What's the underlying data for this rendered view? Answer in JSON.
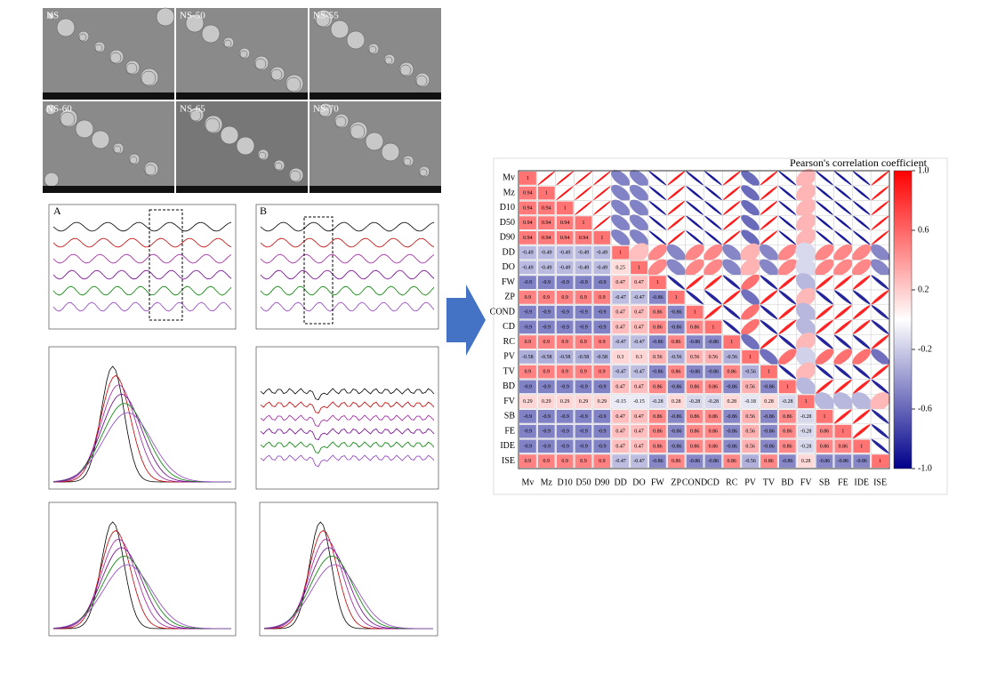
{
  "sem_labels": [
    "NS",
    "NS-50",
    "NS-55",
    "NS-60",
    "NS-65",
    "NS-70"
  ],
  "panel_labels": [
    "A",
    "B"
  ],
  "chart_data": {
    "type": "correlation-matrix",
    "title": "Pearson's correlation coefficient",
    "variables": [
      "Mv",
      "Mz",
      "D10",
      "D50",
      "D90",
      "DD",
      "DO",
      "FW",
      "ZP",
      "COND",
      "CD",
      "RC",
      "PV",
      "TV",
      "BD",
      "FV",
      "SB",
      "FE",
      "IDE",
      "ISE"
    ],
    "values": [
      [
        1,
        0.94,
        0.94,
        0.94,
        0.94,
        -0.49,
        -0.49,
        -0.9,
        0.9,
        -0.9,
        -0.9,
        0.9,
        -0.58,
        0.9,
        -0.9,
        0.29,
        -0.9,
        -0.9,
        -0.9,
        0.9
      ],
      [
        0.94,
        1,
        0.94,
        0.94,
        0.94,
        -0.49,
        -0.49,
        -0.9,
        0.9,
        -0.9,
        -0.9,
        0.9,
        -0.58,
        0.9,
        -0.9,
        0.29,
        -0.9,
        -0.9,
        -0.9,
        0.9
      ],
      [
        0.94,
        0.94,
        1,
        0.94,
        0.94,
        -0.49,
        -0.49,
        -0.9,
        0.9,
        -0.9,
        -0.9,
        0.9,
        -0.58,
        0.9,
        -0.9,
        0.29,
        -0.9,
        -0.9,
        -0.9,
        0.9
      ],
      [
        0.94,
        0.94,
        0.94,
        1,
        0.94,
        -0.49,
        -0.49,
        -0.9,
        0.9,
        -0.9,
        -0.9,
        0.9,
        -0.58,
        0.9,
        -0.9,
        0.29,
        -0.9,
        -0.9,
        -0.9,
        0.9
      ],
      [
        0.94,
        0.94,
        0.94,
        0.94,
        1,
        -0.49,
        -0.49,
        -0.9,
        0.9,
        -0.9,
        -0.9,
        0.9,
        -0.58,
        0.9,
        -0.9,
        0.29,
        -0.9,
        -0.9,
        -0.9,
        0.9
      ],
      [
        -0.49,
        -0.49,
        -0.49,
        -0.49,
        -0.49,
        1,
        0.25,
        0.47,
        -0.47,
        0.47,
        0.47,
        -0.47,
        0.3,
        -0.47,
        0.47,
        -0.15,
        0.47,
        0.47,
        0.47,
        -0.47
      ],
      [
        -0.49,
        -0.49,
        -0.49,
        -0.49,
        -0.49,
        0.25,
        1,
        0.47,
        -0.47,
        0.47,
        0.47,
        -0.47,
        0.3,
        -0.47,
        0.47,
        -0.15,
        0.47,
        0.47,
        0.47,
        -0.47
      ],
      [
        -0.9,
        -0.9,
        -0.9,
        -0.9,
        -0.9,
        0.47,
        0.47,
        1,
        -0.86,
        0.86,
        0.86,
        -0.86,
        0.56,
        -0.86,
        0.86,
        -0.28,
        0.86,
        0.86,
        0.86,
        -0.86
      ],
      [
        0.9,
        0.9,
        0.9,
        0.9,
        0.9,
        -0.47,
        -0.47,
        -0.86,
        1,
        -0.86,
        -0.86,
        0.86,
        -0.56,
        0.86,
        -0.86,
        0.28,
        -0.86,
        -0.86,
        -0.86,
        0.86
      ],
      [
        -0.9,
        -0.9,
        -0.9,
        -0.9,
        -0.9,
        0.47,
        0.47,
        0.86,
        -0.86,
        1,
        0.86,
        -0.86,
        0.56,
        -0.86,
        0.86,
        -0.28,
        0.86,
        0.86,
        0.86,
        -0.86
      ],
      [
        -0.9,
        -0.9,
        -0.9,
        -0.9,
        -0.9,
        0.47,
        0.47,
        0.86,
        -0.86,
        0.86,
        1,
        -0.86,
        0.56,
        -0.86,
        0.86,
        -0.28,
        0.86,
        0.86,
        0.86,
        -0.86
      ],
      [
        0.9,
        0.9,
        0.9,
        0.9,
        0.9,
        -0.47,
        -0.47,
        -0.86,
        0.86,
        -0.86,
        -0.86,
        1,
        -0.56,
        0.86,
        -0.86,
        0.28,
        -0.86,
        -0.86,
        -0.86,
        0.86
      ],
      [
        -0.58,
        -0.58,
        -0.58,
        -0.58,
        -0.58,
        0.3,
        0.3,
        0.56,
        -0.56,
        0.56,
        0.56,
        -0.56,
        1,
        -0.56,
        0.56,
        -0.18,
        0.56,
        0.56,
        0.56,
        -0.56
      ],
      [
        0.9,
        0.9,
        0.9,
        0.9,
        0.9,
        -0.47,
        -0.47,
        -0.86,
        0.86,
        -0.86,
        -0.86,
        0.86,
        -0.56,
        1,
        -0.86,
        0.28,
        -0.86,
        -0.86,
        -0.86,
        0.86
      ],
      [
        -0.9,
        -0.9,
        -0.9,
        -0.9,
        -0.9,
        0.47,
        0.47,
        0.86,
        -0.86,
        0.86,
        0.86,
        -0.86,
        0.56,
        -0.86,
        1,
        -0.28,
        0.86,
        0.86,
        0.86,
        -0.86
      ],
      [
        0.29,
        0.29,
        0.29,
        0.29,
        0.29,
        -0.15,
        -0.15,
        -0.28,
        0.28,
        -0.28,
        -0.28,
        0.28,
        -0.18,
        0.28,
        -0.28,
        1,
        -0.28,
        -0.28,
        -0.28,
        0.28
      ],
      [
        -0.9,
        -0.9,
        -0.9,
        -0.9,
        -0.9,
        0.47,
        0.47,
        0.86,
        -0.86,
        0.86,
        0.86,
        -0.86,
        0.56,
        -0.86,
        0.86,
        -0.28,
        1,
        0.86,
        0.86,
        -0.86
      ],
      [
        -0.9,
        -0.9,
        -0.9,
        -0.9,
        -0.9,
        0.47,
        0.47,
        0.86,
        -0.86,
        0.86,
        0.86,
        -0.86,
        0.56,
        -0.86,
        0.86,
        -0.28,
        0.86,
        1,
        0.86,
        -0.86
      ],
      [
        -0.9,
        -0.9,
        -0.9,
        -0.9,
        -0.9,
        0.47,
        0.47,
        0.86,
        -0.86,
        0.86,
        0.86,
        -0.86,
        0.56,
        -0.86,
        0.86,
        -0.28,
        0.86,
        0.86,
        1,
        -0.86
      ],
      [
        0.9,
        0.9,
        0.9,
        0.9,
        0.9,
        -0.47,
        -0.47,
        -0.86,
        0.86,
        -0.86,
        -0.86,
        0.86,
        -0.56,
        0.86,
        -0.86,
        0.28,
        -0.86,
        -0.86,
        -0.86,
        1
      ]
    ],
    "clim": [
      -1,
      1
    ],
    "cticks": [
      {
        "value": 1,
        "label": "1.0"
      },
      {
        "value": 0.6,
        "label": "0.6"
      },
      {
        "value": 0.2,
        "label": "0.2"
      },
      {
        "value": -0.2,
        "label": "-0.2"
      },
      {
        "value": -0.6,
        "label": "-0.6"
      },
      {
        "value": -1,
        "label": "-1.0"
      }
    ],
    "colors": [
      "#00008b",
      "#ffffff",
      "#ff0000"
    ]
  }
}
